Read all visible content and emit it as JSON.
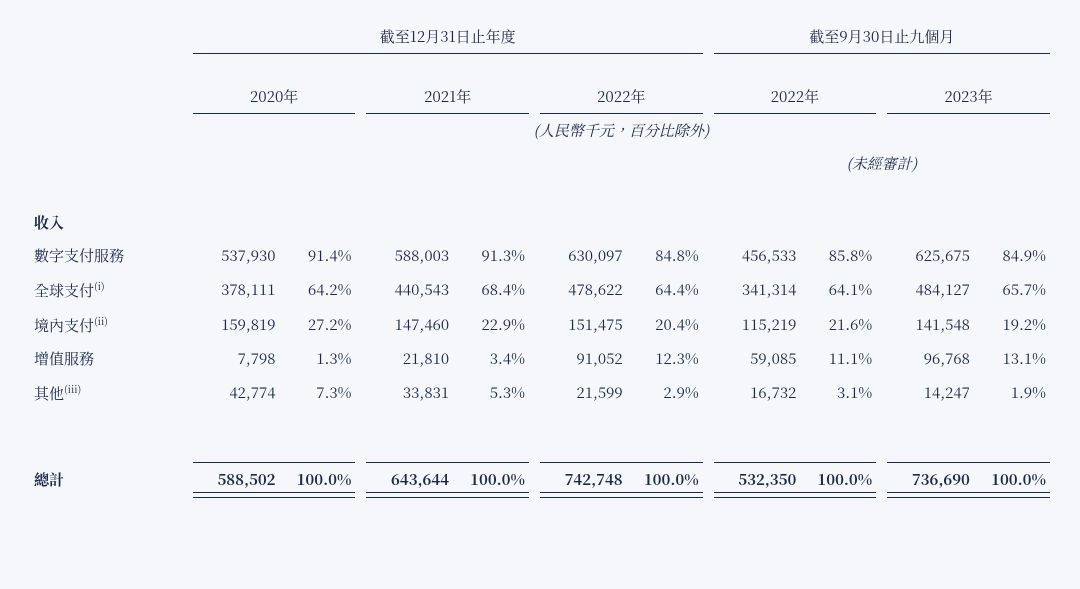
{
  "header": {
    "group1": "截至12月31日止年度",
    "group2": "截至9月30日止九個月",
    "years": [
      "2020年",
      "2021年",
      "2022年",
      "2022年",
      "2023年"
    ],
    "unit_note": "(人民幣千元，百分比除外)",
    "unaudited_note": "(未經審計)"
  },
  "section_title": "收入",
  "rows": [
    {
      "label": "數字支付服務",
      "sup": "",
      "indent": 0,
      "cells": [
        [
          "537,930",
          "91.4%"
        ],
        [
          "588,003",
          "91.3%"
        ],
        [
          "630,097",
          "84.8%"
        ],
        [
          "456,533",
          "85.8%"
        ],
        [
          "625,675",
          "84.9%"
        ]
      ]
    },
    {
      "label": "全球支付",
      "sup": "(i)",
      "indent": 1,
      "cells": [
        [
          "378,111",
          "64.2%"
        ],
        [
          "440,543",
          "68.4%"
        ],
        [
          "478,622",
          "64.4%"
        ],
        [
          "341,314",
          "64.1%"
        ],
        [
          "484,127",
          "65.7%"
        ]
      ]
    },
    {
      "label": "境內支付",
      "sup": "(ii)",
      "indent": 1,
      "cells": [
        [
          "159,819",
          "27.2%"
        ],
        [
          "147,460",
          "22.9%"
        ],
        [
          "151,475",
          "20.4%"
        ],
        [
          "115,219",
          "21.6%"
        ],
        [
          "141,548",
          "19.2%"
        ]
      ]
    },
    {
      "label": "增值服務",
      "sup": "",
      "indent": 0,
      "cells": [
        [
          "7,798",
          "1.3%"
        ],
        [
          "21,810",
          "3.4%"
        ],
        [
          "91,052",
          "12.3%"
        ],
        [
          "59,085",
          "11.1%"
        ],
        [
          "96,768",
          "13.1%"
        ]
      ]
    },
    {
      "label": "其他",
      "sup": "(iii)",
      "indent": 0,
      "cells": [
        [
          "42,774",
          "7.3%"
        ],
        [
          "33,831",
          "5.3%"
        ],
        [
          "21,599",
          "2.9%"
        ],
        [
          "16,732",
          "3.1%"
        ],
        [
          "14,247",
          "1.9%"
        ]
      ]
    }
  ],
  "total": {
    "label": "總計",
    "cells": [
      [
        "588,502",
        "100.0%"
      ],
      [
        "643,644",
        "100.0%"
      ],
      [
        "742,748",
        "100.0%"
      ],
      [
        "532,350",
        "100.0%"
      ],
      [
        "736,690",
        "100.0%"
      ]
    ]
  },
  "style": {
    "text_color": "#1a2a4a",
    "background_color": "#f5f7fb",
    "font_size_body": 15,
    "font_size_sup": 10
  }
}
